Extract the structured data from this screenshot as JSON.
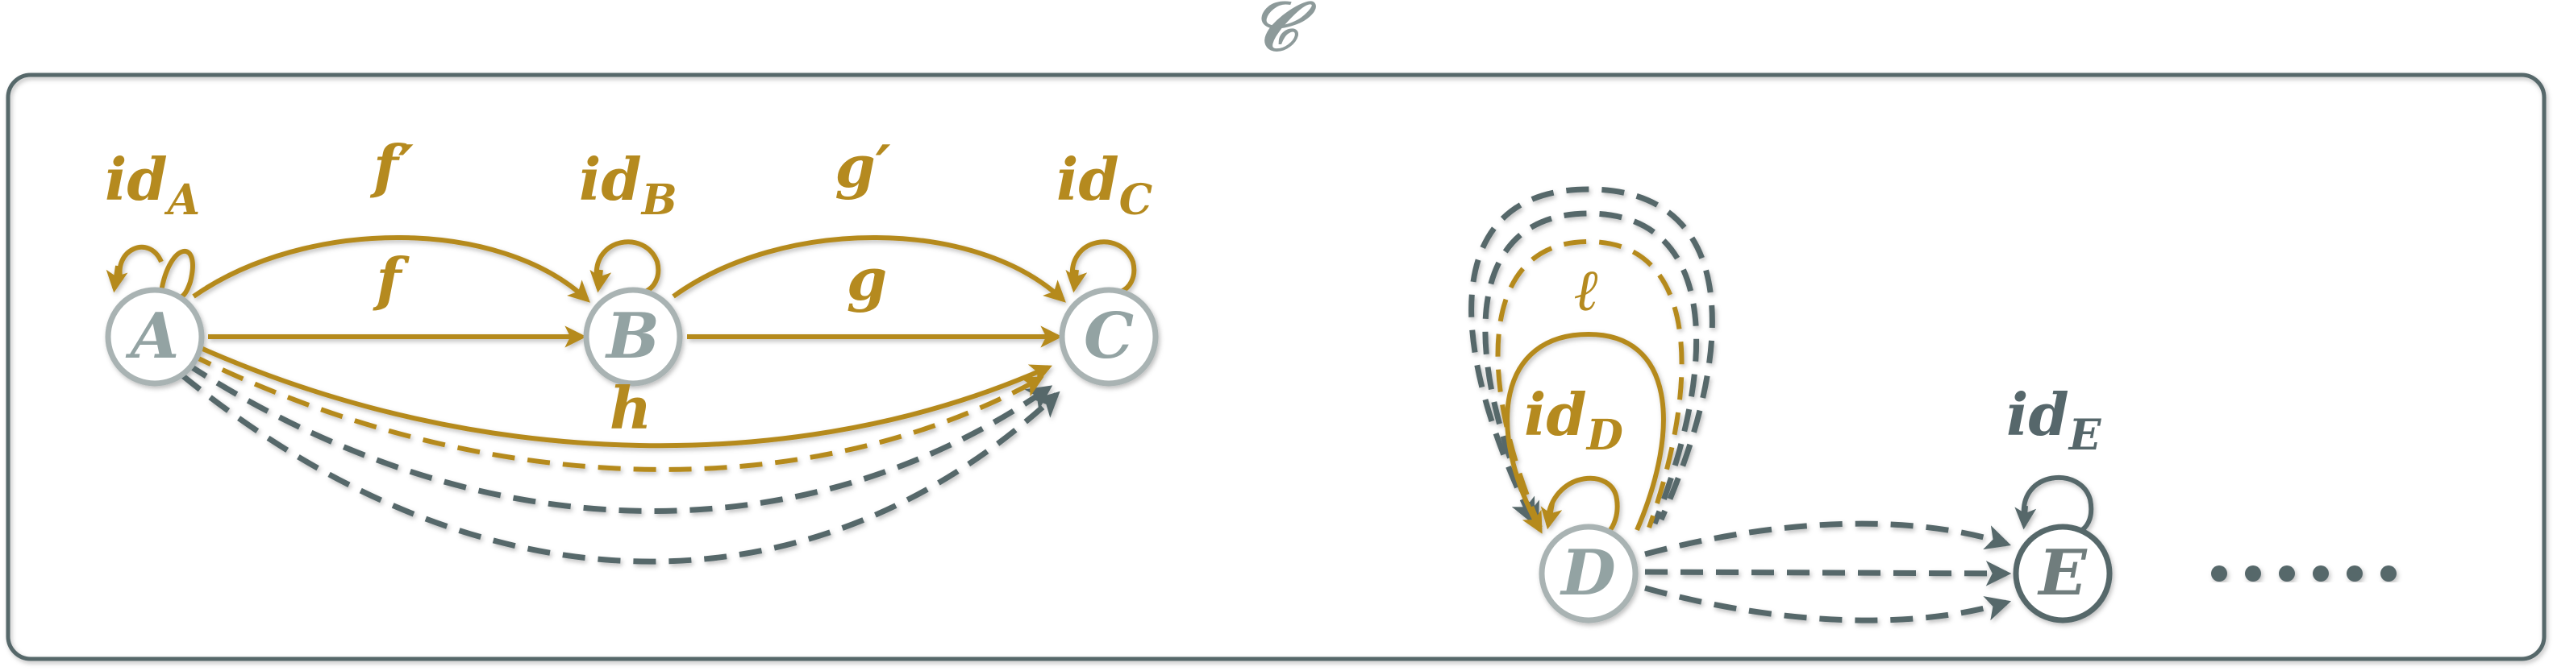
{
  "category_label": "𝒞",
  "nodes": {
    "A": "A",
    "B": "B",
    "C": "C",
    "D": "D",
    "E": "E"
  },
  "labels": {
    "idA": {
      "base": "id",
      "sub": "A"
    },
    "idB": {
      "base": "id",
      "sub": "B"
    },
    "idC": {
      "base": "id",
      "sub": "C"
    },
    "idD": {
      "base": "id",
      "sub": "D"
    },
    "idE": {
      "base": "id",
      "sub": "E"
    },
    "f_prime": "f′",
    "f": "f",
    "g_prime": "g′",
    "g": "g",
    "h": "h",
    "ell": "ℓ"
  },
  "ellipsis_dots": 6,
  "colors": {
    "gold": "#b58a1f",
    "slate": "#56676b",
    "node_stroke_light": "#a9b3b3",
    "frame": "#56676b"
  }
}
